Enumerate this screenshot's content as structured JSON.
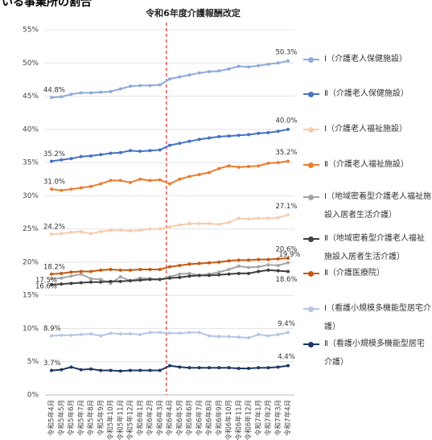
{
  "chart_data": {
    "type": "line",
    "title": "いる事業所の割合",
    "annotation": "令和6年度介護報酬改定",
    "categories": [
      "令和5年4月",
      "令和5年5月",
      "令和5年6月",
      "令和5年7月",
      "令和5年8月",
      "令和5年9月",
      "令和5年10月",
      "令和5年11月",
      "令和5年12月",
      "令和6年1月",
      "令和6年2月",
      "令和6年3月",
      "令和6年4月",
      "令和6年5月",
      "令和6年6月",
      "令和6年7月",
      "令和6年8月",
      "令和6年9月",
      "令和6年10月",
      "令和6年11月",
      "令和6年12月",
      "令和7年1月",
      "令和7年2月",
      "令和7年3月",
      "令和7年4月"
    ],
    "ylim": [
      0,
      55
    ],
    "yticks": [
      {
        "value": 0,
        "label": "0%"
      },
      {
        "value": 5,
        "label": "5%"
      },
      {
        "value": 10,
        "label": "10%"
      },
      {
        "value": 15,
        "label": "15%"
      },
      {
        "value": 20,
        "label": "20%"
      },
      {
        "value": 25,
        "label": "25%"
      },
      {
        "value": 30,
        "label": "30%"
      },
      {
        "value": 35,
        "label": "35%"
      },
      {
        "value": 40,
        "label": "40%"
      },
      {
        "value": 45,
        "label": "45%"
      },
      {
        "value": 50,
        "label": "50%"
      },
      {
        "value": 55,
        "label": "55%"
      }
    ],
    "grid": true,
    "legend": "right",
    "series": [
      {
        "name": "Ⅰ（介護老人保健施設）",
        "color": "#8faadc",
        "values": [
          44.8,
          44.9,
          45.3,
          45.5,
          45.5,
          45.6,
          45.7,
          46.1,
          46.5,
          46.6,
          46.6,
          46.7,
          47.6,
          47.9,
          48.2,
          48.5,
          48.7,
          48.8,
          49.1,
          49.5,
          49.4,
          49.6,
          49.8,
          50.0,
          50.3
        ],
        "value_labels": [
          "44.8%",
          null,
          null,
          null,
          null,
          null,
          null,
          null,
          null,
          null,
          null,
          null,
          null,
          null,
          null,
          null,
          null,
          null,
          null,
          null,
          null,
          null,
          null,
          null,
          "50.3%"
        ]
      },
      {
        "name": "Ⅱ（介護老人保健施設）",
        "color": "#4472c4",
        "values": [
          35.2,
          35.4,
          35.6,
          35.9,
          36.0,
          36.2,
          36.4,
          36.5,
          36.8,
          36.7,
          36.8,
          36.9,
          37.6,
          37.9,
          38.2,
          38.5,
          38.7,
          38.9,
          39.0,
          39.1,
          39.2,
          39.4,
          39.5,
          39.7,
          40.0
        ],
        "value_labels": [
          "35.2%",
          null,
          null,
          null,
          null,
          null,
          null,
          null,
          null,
          null,
          null,
          null,
          null,
          null,
          null,
          null,
          null,
          null,
          null,
          null,
          null,
          null,
          null,
          null,
          "40.0%"
        ]
      },
      {
        "name": "Ⅰ（介護老人福祉施設）",
        "color": "#f8cbad",
        "values": [
          24.2,
          24.3,
          24.5,
          24.6,
          24.3,
          24.6,
          24.8,
          24.8,
          24.7,
          24.8,
          25.0,
          25.0,
          25.3,
          25.6,
          25.8,
          25.8,
          25.8,
          25.7,
          26.0,
          26.6,
          26.5,
          26.6,
          26.6,
          26.7,
          27.1
        ],
        "value_labels": [
          "24.2%",
          null,
          null,
          null,
          null,
          null,
          null,
          null,
          null,
          null,
          null,
          null,
          null,
          null,
          null,
          null,
          null,
          null,
          null,
          null,
          null,
          null,
          null,
          null,
          "27.1%"
        ]
      },
      {
        "name": "Ⅱ（介護老人福祉施設）",
        "color": "#ed7d31",
        "values": [
          31.0,
          30.8,
          31.0,
          31.2,
          31.4,
          31.8,
          32.3,
          32.3,
          32.0,
          32.5,
          32.3,
          32.4,
          31.8,
          32.5,
          32.9,
          33.2,
          33.5,
          34.1,
          34.5,
          34.3,
          34.4,
          34.5,
          34.9,
          35.0,
          35.2
        ],
        "value_labels": [
          "31.0%",
          null,
          null,
          null,
          null,
          null,
          null,
          null,
          null,
          null,
          null,
          null,
          null,
          null,
          null,
          null,
          null,
          null,
          null,
          null,
          null,
          null,
          null,
          null,
          "35.2%"
        ]
      },
      {
        "name": "Ⅰ（地域密着型介護老人福祉施設入居者生活介護）",
        "color": "#a5a5a5",
        "values": [
          17.5,
          17.6,
          17.9,
          18.2,
          17.5,
          17.4,
          16.8,
          17.8,
          17.2,
          17.6,
          17.5,
          17.4,
          17.8,
          18.2,
          18.3,
          18.0,
          18.2,
          18.5,
          18.9,
          19.4,
          19.2,
          19.3,
          19.6,
          19.5,
          19.9
        ],
        "value_labels": [
          "17.5%",
          null,
          null,
          null,
          null,
          null,
          null,
          null,
          null,
          null,
          null,
          null,
          null,
          null,
          null,
          null,
          null,
          null,
          null,
          null,
          null,
          null,
          null,
          null,
          "19.9%"
        ]
      },
      {
        "name": "Ⅱ（地域密着型介護老人福祉施設入居者生活介護）",
        "color": "#404040",
        "values": [
          16.6,
          16.7,
          16.8,
          16.9,
          17.0,
          17.0,
          17.1,
          17.1,
          17.2,
          17.3,
          17.4,
          17.4,
          17.6,
          17.7,
          17.9,
          18.0,
          18.0,
          18.1,
          18.2,
          18.3,
          18.3,
          18.6,
          18.8,
          18.7,
          18.6
        ],
        "value_labels": [
          "16.6%",
          null,
          null,
          null,
          null,
          null,
          null,
          null,
          null,
          null,
          null,
          null,
          null,
          null,
          null,
          null,
          null,
          null,
          null,
          null,
          null,
          null,
          null,
          null,
          "18.6%"
        ]
      },
      {
        "name": "Ⅱ（介護医療院）",
        "color": "#c55a11",
        "values": [
          18.2,
          18.3,
          18.5,
          18.6,
          18.6,
          18.8,
          18.9,
          18.8,
          18.8,
          18.9,
          18.9,
          18.9,
          19.3,
          19.5,
          19.7,
          19.8,
          19.9,
          20.0,
          20.2,
          20.3,
          20.3,
          20.4,
          20.4,
          20.5,
          20.6
        ],
        "value_labels": [
          "18.2%",
          null,
          null,
          null,
          null,
          null,
          null,
          null,
          null,
          null,
          null,
          null,
          null,
          null,
          null,
          null,
          null,
          null,
          null,
          null,
          null,
          null,
          null,
          null,
          "20.6%"
        ]
      },
      {
        "name": "Ⅰ（看護小規模多機能型居宅介護）",
        "color": "#b4c7e7",
        "values": [
          8.9,
          9.0,
          9.0,
          9.1,
          9.2,
          8.9,
          9.3,
          9.2,
          9.2,
          9.1,
          9.4,
          9.4,
          9.3,
          9.3,
          9.4,
          9.4,
          8.9,
          8.8,
          8.8,
          8.7,
          8.6,
          9.1,
          8.9,
          9.1,
          9.4
        ],
        "value_labels": [
          "8.9%",
          null,
          null,
          null,
          null,
          null,
          null,
          null,
          null,
          null,
          null,
          null,
          null,
          null,
          null,
          null,
          null,
          null,
          null,
          null,
          null,
          null,
          null,
          null,
          "9.4%"
        ]
      },
      {
        "name": "Ⅱ（看護小規模多機能型居宅介護）",
        "color": "#1f3864",
        "values": [
          3.7,
          3.8,
          4.2,
          3.8,
          3.9,
          3.7,
          3.7,
          3.6,
          3.7,
          3.7,
          3.7,
          3.7,
          4.4,
          4.2,
          4.1,
          4.1,
          4.1,
          4.1,
          4.1,
          4.0,
          4.0,
          4.1,
          4.1,
          4.2,
          4.4
        ],
        "value_labels": [
          "3.7%",
          null,
          null,
          null,
          null,
          null,
          null,
          null,
          null,
          null,
          null,
          null,
          null,
          null,
          null,
          null,
          null,
          null,
          null,
          null,
          null,
          null,
          null,
          null,
          "4.4%"
        ]
      }
    ]
  }
}
